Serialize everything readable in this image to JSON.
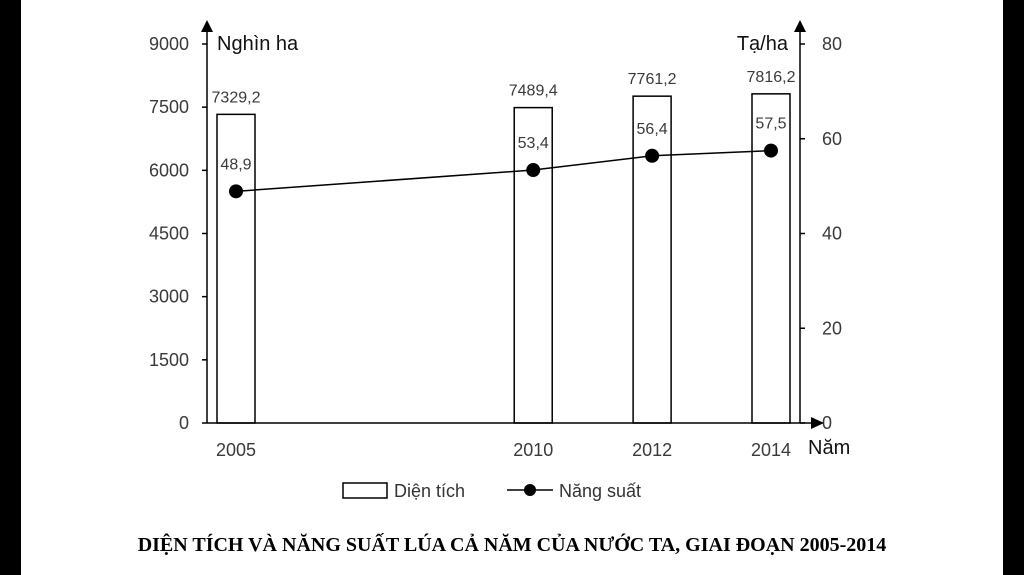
{
  "chart_data": {
    "type": "bar",
    "title": "DIỆN TÍCH VÀ NĂNG SUẤT LÚA CẢ NĂM CỦA NƯỚC TA, GIAI ĐOẠN 2005-2014",
    "x_unit": "Năm",
    "x": [
      2005,
      2010,
      2012,
      2014
    ],
    "x_tick_labels": [
      "2005",
      "2010",
      "2012",
      "2014"
    ],
    "left_axis": {
      "unit": "Nghìn ha",
      "ylim": [
        0,
        9000
      ],
      "ticks": [
        "0",
        "1500",
        "3000",
        "4500",
        "6000",
        "7500",
        "9000"
      ]
    },
    "right_axis": {
      "unit": "Tạ/ha",
      "ylim": [
        0,
        80
      ],
      "ticks": [
        "0",
        "20",
        "40",
        "60",
        "80"
      ]
    },
    "series": [
      {
        "name": "Diện tích",
        "type": "bar",
        "axis": "left",
        "values": [
          7329.2,
          7489.4,
          7761.2,
          7816.2
        ],
        "labels": [
          "7329,2",
          "7489,4",
          "7761,2",
          "7816,2"
        ]
      },
      {
        "name": "Năng suất",
        "type": "line",
        "axis": "right",
        "values": [
          48.9,
          53.4,
          56.4,
          57.5
        ],
        "labels": [
          "48,9",
          "53,4",
          "56,4",
          "57,5"
        ]
      }
    ],
    "grid": false,
    "legend_position": "bottom"
  }
}
